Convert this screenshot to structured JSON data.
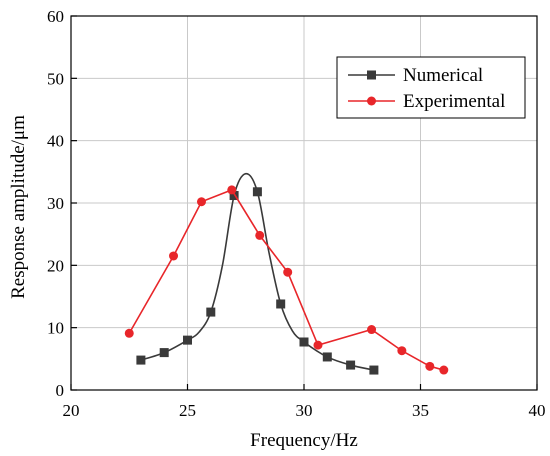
{
  "chart_data": {
    "type": "line",
    "title": "",
    "xlabel": "Frequency/Hz",
    "ylabel": "Response amplitude/μm",
    "xlim": [
      20,
      40
    ],
    "ylim": [
      0,
      60
    ],
    "x_ticks": [
      20,
      25,
      30,
      35,
      40
    ],
    "y_ticks": [
      0,
      10,
      20,
      30,
      40,
      50,
      60
    ],
    "grid": true,
    "legend_position": "top-right",
    "series": [
      {
        "name": "Numerical",
        "color": "#3a3a3a",
        "marker": "square",
        "smooth": true,
        "points": [
          {
            "x": 23,
            "y": 4.8
          },
          {
            "x": 24,
            "y": 6.0
          },
          {
            "x": 25,
            "y": 8.0
          },
          {
            "x": 26,
            "y": 12.5
          },
          {
            "x": 27,
            "y": 31.2
          },
          {
            "x": 28,
            "y": 31.8
          },
          {
            "x": 29,
            "y": 13.8
          },
          {
            "x": 30,
            "y": 7.7
          },
          {
            "x": 31,
            "y": 5.3
          },
          {
            "x": 32,
            "y": 4.0
          },
          {
            "x": 33,
            "y": 3.2
          }
        ],
        "curve": [
          {
            "x": 23,
            "y": 4.8
          },
          {
            "x": 24,
            "y": 6.0
          },
          {
            "x": 25,
            "y": 8.0
          },
          {
            "x": 25.5,
            "y": 9.3
          },
          {
            "x": 26,
            "y": 12.5
          },
          {
            "x": 26.5,
            "y": 20.0
          },
          {
            "x": 27,
            "y": 31.2
          },
          {
            "x": 27.5,
            "y": 34.7
          },
          {
            "x": 28,
            "y": 31.8
          },
          {
            "x": 28.5,
            "y": 22.0
          },
          {
            "x": 29,
            "y": 13.8
          },
          {
            "x": 29.5,
            "y": 9.5
          },
          {
            "x": 30,
            "y": 7.7
          },
          {
            "x": 31,
            "y": 5.3
          },
          {
            "x": 32,
            "y": 4.0
          },
          {
            "x": 33,
            "y": 3.2
          }
        ]
      },
      {
        "name": "Experimental",
        "color": "#e8262a",
        "marker": "circle",
        "smooth": false,
        "points": [
          {
            "x": 22.5,
            "y": 9.1
          },
          {
            "x": 24.4,
            "y": 21.5
          },
          {
            "x": 25.6,
            "y": 30.2
          },
          {
            "x": 26.9,
            "y": 32.1
          },
          {
            "x": 28.1,
            "y": 24.8
          },
          {
            "x": 29.3,
            "y": 18.9
          },
          {
            "x": 30.6,
            "y": 7.2
          },
          {
            "x": 32.9,
            "y": 9.7
          },
          {
            "x": 34.2,
            "y": 6.3
          },
          {
            "x": 35.4,
            "y": 3.8
          },
          {
            "x": 36.0,
            "y": 3.2
          }
        ]
      }
    ]
  }
}
